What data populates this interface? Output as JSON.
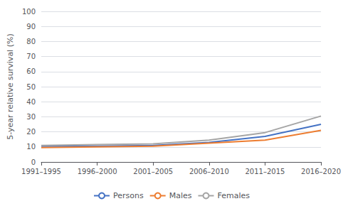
{
  "chart_data": {
    "type": "line",
    "ylabel": "5-year relative survival (%)",
    "categories": [
      "1991–1995",
      "1996–2000",
      "2001–2005",
      "2006–2010",
      "2011–2015",
      "2016–2020"
    ],
    "series": [
      {
        "name": "Persons",
        "color": "#4472C4",
        "values": [
          10.5,
          10.5,
          11.0,
          13.0,
          17.0,
          25.0
        ]
      },
      {
        "name": "Males",
        "color": "#ED7D31",
        "values": [
          9.5,
          10.0,
          10.5,
          12.5,
          14.5,
          21.0
        ]
      },
      {
        "name": "Females",
        "color": "#A5A5A5",
        "values": [
          11.0,
          11.5,
          12.0,
          14.5,
          19.5,
          30.5
        ]
      }
    ],
    "ylim": [
      0,
      100
    ],
    "yticks": [
      0,
      10,
      20,
      30,
      40,
      50,
      60,
      70,
      80,
      90,
      100
    ],
    "grid": true,
    "legend": "bottom"
  }
}
